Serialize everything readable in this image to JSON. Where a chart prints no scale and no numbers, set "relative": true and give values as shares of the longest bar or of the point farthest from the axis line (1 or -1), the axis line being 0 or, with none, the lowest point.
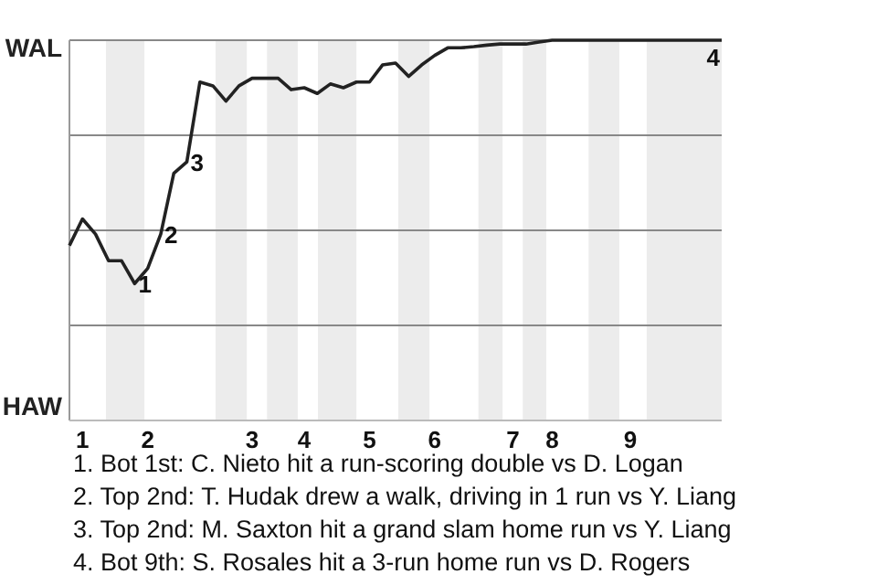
{
  "chart_data": {
    "type": "line",
    "relative": true,
    "categories": [
      null,
      "1",
      null,
      null,
      null,
      null,
      "2",
      null,
      null,
      null,
      null,
      null,
      null,
      null,
      "3",
      null,
      null,
      null,
      "4",
      null,
      null,
      null,
      null,
      "5",
      null,
      null,
      null,
      null,
      "6",
      null,
      null,
      null,
      null,
      null,
      "7",
      null,
      null,
      "8",
      null,
      null,
      null,
      null,
      null,
      "9",
      null,
      null,
      null,
      null,
      null,
      null,
      null
    ],
    "grid": "y",
    "marker": "none",
    "line_style": "solid",
    "series": [
      {
        "color": "#222222",
        "values": [
          0.46,
          0.53,
          0.49,
          0.42,
          0.42,
          0.36,
          0.4,
          0.49,
          0.65,
          0.68,
          0.89,
          0.88,
          0.84,
          0.88,
          0.9,
          0.9,
          0.9,
          0.87,
          0.875,
          0.86,
          0.885,
          0.875,
          0.89,
          0.89,
          0.935,
          0.94,
          0.905,
          0.935,
          0.96,
          0.98,
          0.98,
          0.983,
          0.987,
          0.99,
          0.99,
          0.99,
          0.995,
          1,
          1,
          1,
          1,
          1,
          1,
          1,
          1,
          1,
          1,
          1,
          1,
          1,
          1
        ]
      }
    ],
    "annotations": [
      "WAL",
      "HAW",
      {
        "text": "1",
        "y": 0.36
      },
      {
        "text": "2",
        "y": 0.49
      },
      {
        "text": "3",
        "y": 0.68
      },
      {
        "text": "4",
        "y": 1
      },
      "1. Bot 1st: C. Nieto hit a run-scoring double vs D. Logan",
      "2. Top 2nd: T. Hudak drew a walk, driving in 1 run vs Y. Liang",
      "3. Top 2nd: M. Saxton hit a grand slam home run vs Y. Liang",
      "4. Bot 9th: S. Rosales hit a 3-run home run vs D. Rogers"
    ]
  }
}
